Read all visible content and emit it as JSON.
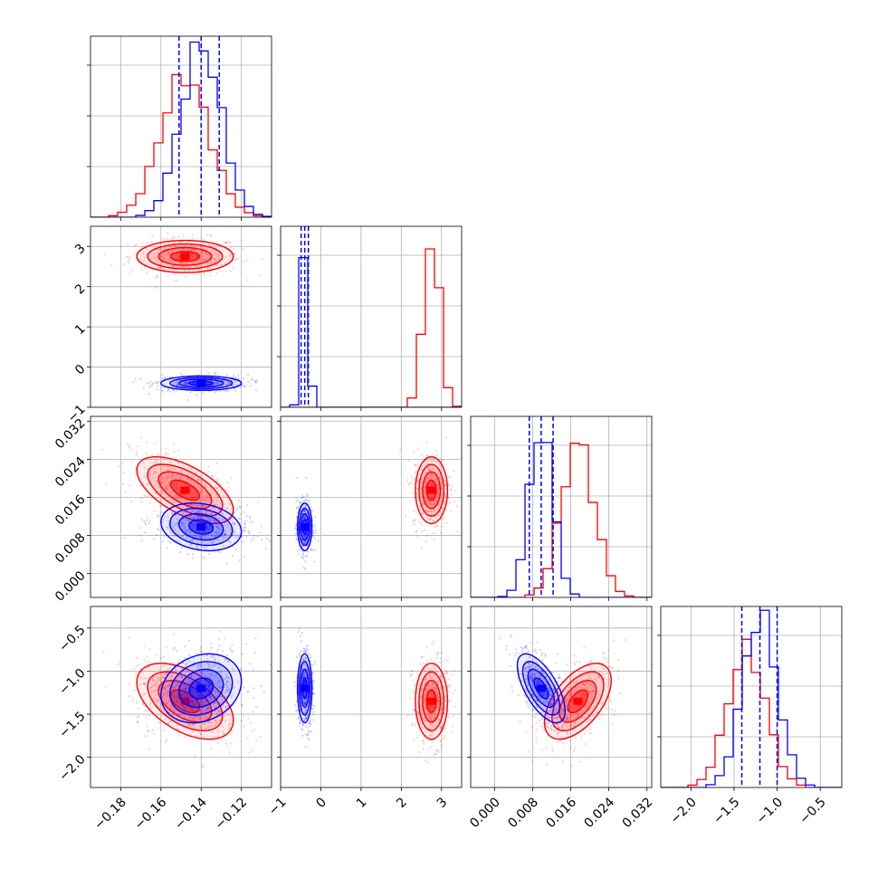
{
  "chart_data": {
    "type": "corner",
    "grid": true,
    "colors": {
      "red_series": "#ff0000",
      "blue_series": "#0000ff"
    },
    "params": [
      {
        "range": [
          -0.195,
          -0.105
        ],
        "ticks": [
          -0.18,
          -0.16,
          -0.14,
          -0.12
        ],
        "tick_labels": [
          "−0.18",
          "−0.16",
          "−0.14",
          "−0.12"
        ]
      },
      {
        "range": [
          -1.0,
          3.5
        ],
        "ticks": [
          -1,
          0,
          1,
          2,
          3
        ],
        "tick_labels": [
          "−1",
          "0",
          "1",
          "2",
          "3"
        ]
      },
      {
        "range": [
          -0.005,
          0.033
        ],
        "ticks": [
          0.0,
          0.008,
          0.016,
          0.024,
          0.032
        ],
        "tick_labels": [
          "0.000",
          "0.008",
          "0.016",
          "0.024",
          "0.032"
        ]
      },
      {
        "range": [
          -2.35,
          -0.25
        ],
        "ticks": [
          -2.0,
          -1.5,
          -1.0,
          -0.5
        ],
        "tick_labels": [
          "−2.0",
          "−1.5",
          "−1.0",
          "−0.5"
        ]
      }
    ],
    "series": [
      {
        "color": "#ff0000",
        "means": [
          -0.148,
          2.75,
          0.0175,
          -1.35
        ],
        "sigmas": [
          0.012,
          0.2,
          0.0035,
          0.22
        ],
        "correlations": [
          [
            1,
            0,
            -0.6,
            -0.5
          ],
          [
            0,
            1,
            0,
            0
          ],
          [
            -0.6,
            0,
            1,
            0.55
          ],
          [
            -0.5,
            0,
            0.55,
            1
          ]
        ],
        "hist_peak": [
          0.82,
          1.0,
          0.9,
          0.8
        ],
        "quantiles": []
      },
      {
        "color": "#0000ff",
        "means": [
          -0.14,
          -0.4,
          0.0098,
          -1.2
        ],
        "sigmas": [
          0.01,
          0.09,
          0.0025,
          0.2
        ],
        "correlations": [
          [
            1,
            0,
            -0.2,
            0.2
          ],
          [
            0,
            1,
            0,
            0
          ],
          [
            -0.2,
            0,
            1,
            -0.65
          ],
          [
            0.2,
            0,
            -0.65,
            1
          ]
        ],
        "hist_peak": [
          1.0,
          1.0,
          1.0,
          1.0
        ],
        "quantiles": [
          [
            -0.151,
            -0.14,
            -0.131
          ],
          [
            -0.49,
            -0.4,
            -0.31
          ],
          [
            0.0073,
            0.0098,
            0.0123
          ],
          [
            -1.41,
            -1.2,
            -1.0
          ]
        ]
      }
    ]
  }
}
